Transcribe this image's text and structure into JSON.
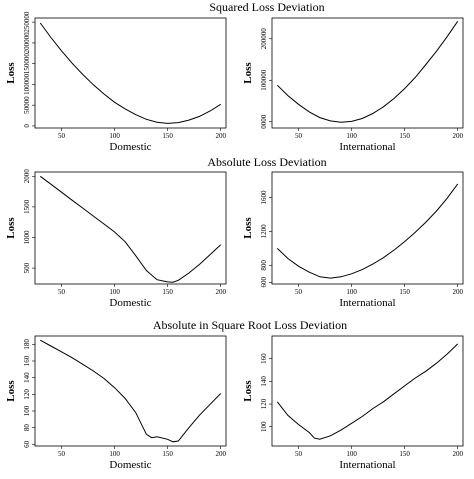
{
  "row_titles": [
    "Squared Loss Deviation",
    "Absolute Loss Deviation",
    "Absolute in Square Root Loss Deviation"
  ],
  "chart_data": [
    {
      "type": "line",
      "row": 0,
      "col": 0,
      "xlabel": "Domestic",
      "ylabel": "Loss",
      "xlim": [
        25,
        205
      ],
      "ylim": [
        -5000,
        260000
      ],
      "xticks": [
        50,
        100,
        150,
        200
      ],
      "yticks": [
        0,
        50000,
        100000,
        150000,
        200000,
        250000
      ],
      "ytick_labels": [
        "0",
        "50000",
        "100000",
        "150000",
        "200000",
        "250000"
      ],
      "x": [
        30,
        40,
        50,
        60,
        70,
        80,
        90,
        100,
        110,
        120,
        130,
        140,
        150,
        160,
        170,
        180,
        190,
        200
      ],
      "y": [
        248000,
        213000,
        181000,
        151000,
        124000,
        99000,
        77000,
        57000,
        41000,
        27000,
        16000,
        9000,
        6000,
        8000,
        14000,
        23000,
        36000,
        52000
      ]
    },
    {
      "type": "line",
      "row": 0,
      "col": 1,
      "xlabel": "International",
      "ylabel": "Loss",
      "xlim": [
        25,
        205
      ],
      "ylim": [
        -15000,
        250000
      ],
      "xticks": [
        50,
        100,
        150,
        200
      ],
      "yticks": [
        0,
        100000,
        200000
      ],
      "ytick_labels": [
        "0000",
        "100000",
        "200000"
      ],
      "x": [
        30,
        40,
        50,
        60,
        70,
        80,
        90,
        100,
        110,
        120,
        130,
        140,
        150,
        160,
        170,
        180,
        190,
        200
      ],
      "y": [
        88000,
        63000,
        42000,
        24000,
        10000,
        2000,
        -1000,
        1000,
        8000,
        20000,
        36000,
        56000,
        80000,
        107000,
        138000,
        170000,
        205000,
        242000
      ]
    },
    {
      "type": "line",
      "row": 1,
      "col": 0,
      "xlabel": "Domestic",
      "ylabel": "Loss",
      "xlim": [
        25,
        205
      ],
      "ylim": [
        240,
        2070
      ],
      "xticks": [
        50,
        100,
        150,
        200
      ],
      "yticks": [
        500,
        1000,
        1500,
        2000
      ],
      "ytick_labels": [
        "500",
        "1000",
        "1500",
        "2000"
      ],
      "x": [
        30,
        40,
        50,
        60,
        70,
        80,
        90,
        100,
        110,
        120,
        130,
        140,
        150,
        155,
        160,
        170,
        180,
        190,
        200
      ],
      "y": [
        2000,
        1870,
        1740,
        1610,
        1480,
        1350,
        1220,
        1090,
        930,
        700,
        460,
        310,
        275,
        270,
        300,
        420,
        560,
        720,
        880
      ]
    },
    {
      "type": "line",
      "row": 1,
      "col": 1,
      "xlabel": "International",
      "ylabel": "Loss",
      "xlim": [
        25,
        205
      ],
      "ylim": [
        580,
        1900
      ],
      "xticks": [
        50,
        100,
        150,
        200
      ],
      "yticks": [
        600,
        800,
        1200,
        1600
      ],
      "ytick_labels": [
        "600",
        "800",
        "1200",
        "1600"
      ],
      "x": [
        30,
        40,
        50,
        60,
        70,
        80,
        90,
        100,
        110,
        120,
        130,
        140,
        150,
        160,
        170,
        180,
        190,
        200
      ],
      "y": [
        1000,
        880,
        790,
        720,
        665,
        650,
        665,
        700,
        750,
        815,
        890,
        980,
        1080,
        1190,
        1310,
        1440,
        1590,
        1760
      ]
    },
    {
      "type": "line",
      "row": 2,
      "col": 0,
      "xlabel": "Domestic",
      "ylabel": "Loss",
      "xlim": [
        25,
        205
      ],
      "ylim": [
        58,
        190
      ],
      "xticks": [
        50,
        100,
        150,
        200
      ],
      "yticks": [
        60,
        80,
        100,
        120,
        140,
        160,
        180
      ],
      "ytick_labels": [
        "60",
        "80",
        "100",
        "120",
        "140",
        "160",
        "180"
      ],
      "x": [
        30,
        40,
        50,
        60,
        70,
        80,
        90,
        100,
        110,
        120,
        130,
        135,
        140,
        150,
        155,
        160,
        170,
        180,
        190,
        200
      ],
      "y": [
        185,
        178,
        171,
        164,
        156,
        148,
        139,
        128,
        115,
        98,
        72,
        68,
        69,
        66,
        63,
        64,
        80,
        95,
        108,
        121
      ]
    },
    {
      "type": "line",
      "row": 2,
      "col": 1,
      "xlabel": "International",
      "ylabel": "Loss",
      "xlim": [
        25,
        205
      ],
      "ylim": [
        83,
        180
      ],
      "xticks": [
        50,
        100,
        150,
        200
      ],
      "yticks": [
        100,
        120,
        140,
        160
      ],
      "ytick_labels": [
        "100",
        "120",
        "140",
        "160"
      ],
      "x": [
        30,
        40,
        50,
        60,
        65,
        70,
        80,
        90,
        100,
        110,
        120,
        130,
        140,
        150,
        160,
        170,
        180,
        190,
        200
      ],
      "y": [
        122,
        110,
        102,
        95,
        90,
        89,
        92,
        97,
        103,
        109,
        116,
        122,
        129,
        136,
        143,
        149,
        156,
        164,
        173
      ]
    }
  ]
}
